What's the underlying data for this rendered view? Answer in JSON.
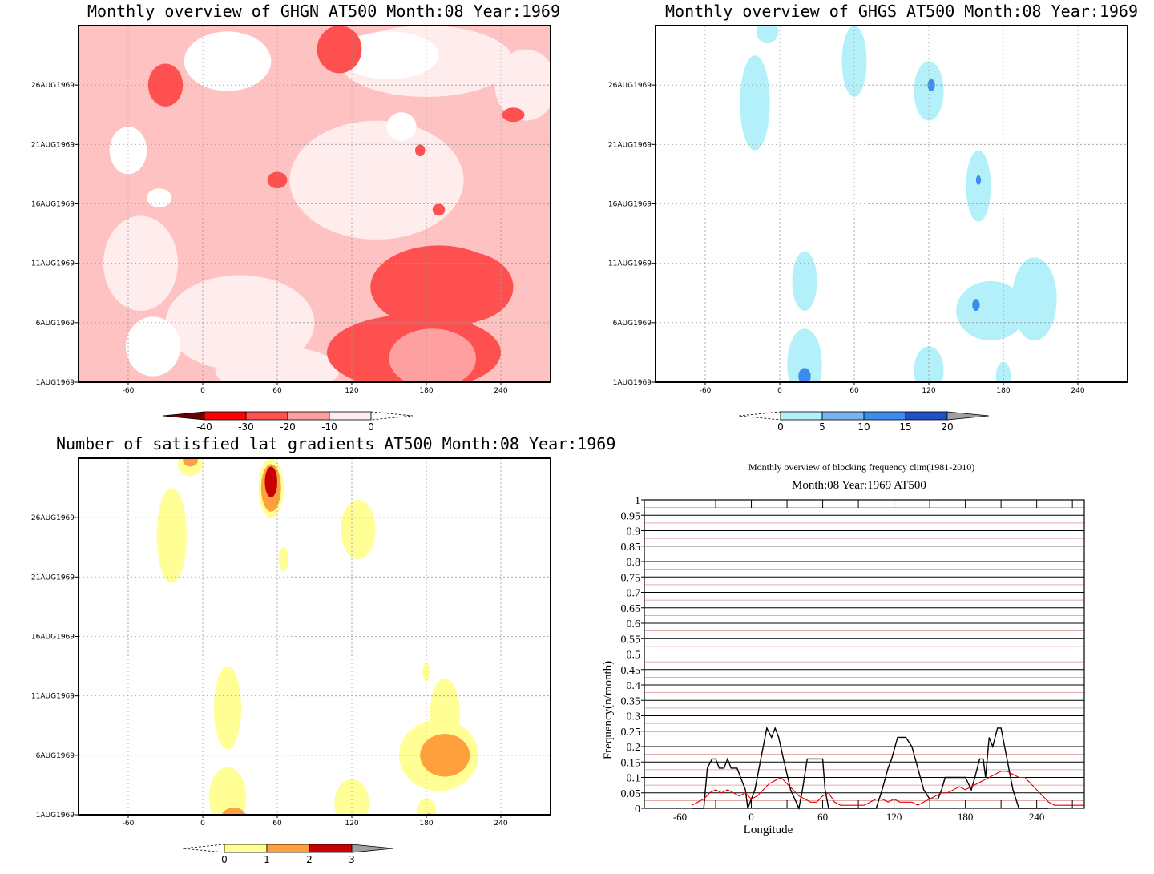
{
  "panels": {
    "ghgn": {
      "title": "Monthly overview of GHGN AT500 Month:08 Year:1969",
      "colorbar": {
        "ticks": [
          "-40",
          "-30",
          "-20",
          "-10",
          "0"
        ],
        "colors": [
          "#6b0000",
          "#ff0000",
          "#ff5050",
          "#ffa0a0",
          "#ffecec"
        ]
      },
      "blobs": [
        {
          "lon": 170,
          "day": 3.5,
          "rlon": 70,
          "rday": 3.2,
          "level": 2
        },
        {
          "lon": 185,
          "day": 3,
          "rlon": 35,
          "rday": 2.5,
          "level": 1
        },
        {
          "lon": 190,
          "day": 9,
          "rlon": 55,
          "rday": 3.5,
          "level": 2
        },
        {
          "lon": 210,
          "day": 9,
          "rlon": 40,
          "rday": 3,
          "level": 2
        },
        {
          "lon": -30,
          "day": 26,
          "rlon": 14,
          "rday": 1.8,
          "level": 2
        },
        {
          "lon": 110,
          "day": 29,
          "rlon": 18,
          "rday": 2,
          "level": 2
        },
        {
          "lon": 60,
          "day": 18,
          "rlon": 8,
          "rday": 0.7,
          "level": 2
        },
        {
          "lon": 250,
          "day": 23.5,
          "rlon": 9,
          "rday": 0.6,
          "level": 2
        },
        {
          "lon": 190,
          "day": 15.5,
          "rlon": 5,
          "rday": 0.5,
          "level": 2
        },
        {
          "lon": 175,
          "day": 20.5,
          "rlon": 4,
          "rday": 0.5,
          "level": 2
        }
      ],
      "whites": [
        {
          "lon": -40,
          "day": 4,
          "rlon": 22,
          "rday": 2.5
        },
        {
          "lon": -60,
          "day": 20.5,
          "rlon": 15,
          "rday": 2
        },
        {
          "lon": 20,
          "day": 28,
          "rlon": 35,
          "rday": 2.5
        },
        {
          "lon": 150,
          "day": 28.5,
          "rlon": 40,
          "rday": 2
        },
        {
          "lon": 160,
          "day": 22.5,
          "rlon": 12,
          "rday": 1.2
        },
        {
          "lon": -35,
          "day": 16.5,
          "rlon": 10,
          "rday": 0.8
        }
      ],
      "pale": [
        {
          "lon": 140,
          "day": 18,
          "rlon": 70,
          "rday": 5
        },
        {
          "lon": 30,
          "day": 6,
          "rlon": 60,
          "rday": 4
        },
        {
          "lon": -50,
          "day": 11,
          "rlon": 30,
          "rday": 4
        },
        {
          "lon": 180,
          "day": 28,
          "rlon": 70,
          "rday": 3
        },
        {
          "lon": 60,
          "day": 2,
          "rlon": 50,
          "rday": 2
        },
        {
          "lon": 260,
          "day": 26,
          "rlon": 25,
          "rday": 3
        }
      ]
    },
    "ghgs": {
      "title": "Monthly overview of GHGS AT500 Month:08 Year:1969",
      "colorbar": {
        "ticks": [
          "0",
          "5",
          "10",
          "15",
          "20"
        ],
        "colors": [
          "#b4f0fa",
          "#78b4f0",
          "#3c8cf0",
          "#1e50c8",
          "#a0a0a0"
        ]
      },
      "blobs": [
        {
          "lon": -20,
          "day": 24.5,
          "rlon": 12,
          "rday": 4,
          "level": 1
        },
        {
          "lon": 60,
          "day": 28,
          "rlon": 10,
          "rday": 3,
          "level": 1
        },
        {
          "lon": 120,
          "day": 25.5,
          "rlon": 12,
          "rday": 2.5,
          "level": 1
        },
        {
          "lon": 160,
          "day": 17.5,
          "rlon": 10,
          "rday": 3,
          "level": 1
        },
        {
          "lon": 20,
          "day": 9.5,
          "rlon": 10,
          "rday": 2.5,
          "level": 1
        },
        {
          "lon": 170,
          "day": 7,
          "rlon": 28,
          "rday": 2.5,
          "level": 1
        },
        {
          "lon": 205,
          "day": 8,
          "rlon": 18,
          "rday": 3.5,
          "level": 1
        },
        {
          "lon": 20,
          "day": 2.5,
          "rlon": 14,
          "rday": 3,
          "level": 1
        },
        {
          "lon": 120,
          "day": 2,
          "rlon": 12,
          "rday": 2,
          "level": 1
        },
        {
          "lon": 180,
          "day": 1.5,
          "rlon": 6,
          "rday": 1.2,
          "level": 1
        },
        {
          "lon": -10,
          "day": 30.5,
          "rlon": 9,
          "rday": 1,
          "level": 1
        },
        {
          "lon": 122,
          "day": 26,
          "rlon": 3,
          "rday": 0.5,
          "level": 2
        },
        {
          "lon": 160,
          "day": 18,
          "rlon": 2,
          "rday": 0.4,
          "level": 2
        },
        {
          "lon": 158,
          "day": 7.5,
          "rlon": 3,
          "rday": 0.5,
          "level": 2
        },
        {
          "lon": 20,
          "day": 1.5,
          "rlon": 5,
          "rday": 0.7,
          "level": 2
        }
      ]
    },
    "lat": {
      "title": "Number of satisfied lat gradients AT500 Month:08 Year:1969",
      "colorbar": {
        "ticks": [
          "0",
          "1",
          "2",
          "3"
        ],
        "colors": [
          "#ffff96",
          "#ffa03c",
          "#c80000",
          "#a0a0a0"
        ]
      },
      "blobs": [
        {
          "lon": -25,
          "day": 24.5,
          "rlon": 12,
          "rday": 4,
          "level": 1
        },
        {
          "lon": 55,
          "day": 28.5,
          "rlon": 10,
          "rday": 2.5,
          "level": 1
        },
        {
          "lon": -10,
          "day": 30.5,
          "rlon": 10,
          "rday": 1,
          "level": 1
        },
        {
          "lon": 125,
          "day": 25,
          "rlon": 14,
          "rday": 2.5,
          "level": 1
        },
        {
          "lon": 65,
          "day": 22.5,
          "rlon": 4,
          "rday": 1,
          "level": 1
        },
        {
          "lon": 20,
          "day": 10,
          "rlon": 11,
          "rday": 3.5,
          "level": 1
        },
        {
          "lon": 190,
          "day": 6,
          "rlon": 32,
          "rday": 3,
          "level": 1
        },
        {
          "lon": 195,
          "day": 9.5,
          "rlon": 12,
          "rday": 3,
          "level": 1
        },
        {
          "lon": 20,
          "day": 2.5,
          "rlon": 15,
          "rday": 2.5,
          "level": 1
        },
        {
          "lon": 120,
          "day": 2,
          "rlon": 14,
          "rday": 2,
          "level": 1
        },
        {
          "lon": 180,
          "day": 1.2,
          "rlon": 8,
          "rday": 1.2,
          "level": 1
        },
        {
          "lon": 180,
          "day": 13,
          "rlon": 3,
          "rday": 0.8,
          "level": 1
        },
        {
          "lon": 55,
          "day": 28.5,
          "rlon": 8,
          "rday": 2,
          "level": 2
        },
        {
          "lon": -10,
          "day": 30.8,
          "rlon": 6,
          "rday": 0.5,
          "level": 2
        },
        {
          "lon": 195,
          "day": 6,
          "rlon": 20,
          "rday": 1.8,
          "level": 2
        },
        {
          "lon": 25,
          "day": 0.8,
          "rlon": 10,
          "rday": 0.8,
          "level": 2
        },
        {
          "lon": 55,
          "day": 29,
          "rlon": 5,
          "rday": 1.3,
          "level": 3
        },
        {
          "lon": 182,
          "day": 0.5,
          "rlon": 3,
          "rday": 0.6,
          "level": 3
        }
      ]
    }
  },
  "map_axes": {
    "xticks": [
      "-60",
      "0",
      "60",
      "120",
      "180",
      "240"
    ],
    "yticks": [
      "1AUG1969",
      "6AUG1969",
      "11AUG1969",
      "16AUG1969",
      "21AUG1969",
      "26AUG1969"
    ]
  },
  "chart_data": {
    "type": "line",
    "title": "Monthly overview of blocking frequency clim(1981-2010)",
    "subtitle": "Month:08 Year:1969  AT500",
    "xlabel": "Longitude",
    "ylabel": "Frequency(n/month)",
    "xlim": [
      -90,
      280
    ],
    "ylim": [
      0,
      1
    ],
    "xticks": [
      "-60",
      "0",
      "60",
      "120",
      "180",
      "240"
    ],
    "yticks": [
      "0",
      "0.05",
      "0.1",
      "0.15",
      "0.2",
      "0.25",
      "0.3",
      "0.35",
      "0.4",
      "0.45",
      "0.5",
      "0.55",
      "0.6",
      "0.65",
      "0.7",
      "0.75",
      "0.8",
      "0.85",
      "0.9",
      "0.95",
      "1"
    ],
    "grid": true,
    "series": [
      {
        "color": "#000000",
        "x": [
          -50,
          -40,
          -37,
          -33,
          -30,
          -27,
          -23,
          -20,
          -17,
          -12,
          -5,
          -3,
          0,
          3,
          8,
          13,
          17,
          20,
          23,
          27,
          33,
          40,
          43,
          47,
          50,
          55,
          60,
          62,
          65,
          70,
          75,
          80,
          85,
          90,
          95,
          100,
          105,
          110,
          115,
          118,
          123,
          127,
          130,
          135,
          140,
          145,
          150,
          157,
          160,
          163,
          167,
          170,
          175,
          180,
          185,
          188,
          192,
          195,
          197,
          200,
          203,
          207,
          210,
          215,
          220,
          225,
          230,
          235,
          240,
          250
        ],
        "y": [
          0,
          0,
          0.13,
          0.16,
          0.16,
          0.13,
          0.13,
          0.16,
          0.13,
          0.13,
          0.06,
          0,
          0.03,
          0.06,
          0.16,
          0.26,
          0.23,
          0.26,
          0.23,
          0.16,
          0.06,
          0,
          0.06,
          0.16,
          0.16,
          0.16,
          0.16,
          0.06,
          0,
          0,
          0,
          0,
          0,
          0,
          0,
          0,
          0,
          0.06,
          0.13,
          0.16,
          0.23,
          0.23,
          0.23,
          0.2,
          0.13,
          0.06,
          0.03,
          0.03,
          0.06,
          0.1,
          0.1,
          0.1,
          0.1,
          0.1,
          0.06,
          0.1,
          0.16,
          0.16,
          0.1,
          0.23,
          0.2,
          0.26,
          0.26,
          0.16,
          0.06,
          0,
          0,
          0,
          0,
          0
        ]
      },
      {
        "color": "#e00000",
        "x": [
          -50,
          -45,
          -40,
          -35,
          -30,
          -25,
          -20,
          -15,
          -10,
          -5,
          0,
          5,
          10,
          15,
          20,
          25,
          30,
          35,
          40,
          45,
          50,
          55,
          60,
          65,
          70,
          75,
          80,
          85,
          90,
          95,
          100,
          105,
          110,
          115,
          120,
          125,
          130,
          135,
          140,
          145,
          150,
          155,
          160,
          165,
          170,
          175,
          180,
          185,
          190,
          195,
          200,
          205,
          210,
          215,
          220,
          225,
          230,
          235,
          240,
          245,
          250,
          255,
          260,
          270,
          280
        ],
        "y": [
          0.01,
          0.02,
          0.03,
          0.05,
          0.06,
          0.05,
          0.06,
          0.05,
          0.04,
          0.05,
          0.03,
          0.04,
          0.06,
          0.08,
          0.09,
          0.1,
          0.08,
          0.06,
          0.04,
          0.03,
          0.02,
          0.02,
          0.04,
          0.05,
          0.02,
          0.01,
          0.01,
          0.01,
          0.01,
          0.01,
          0.02,
          0.03,
          0.03,
          0.02,
          0.03,
          0.02,
          0.02,
          0.02,
          0.01,
          0.02,
          0.03,
          0.04,
          0.05,
          0.05,
          0.06,
          0.07,
          0.06,
          0.07,
          0.08,
          0.09,
          0.1,
          0.11,
          0.12,
          0.12,
          0.11,
          0.1,
          0.1,
          0.08,
          0.06,
          0.04,
          0.02,
          0.01,
          0.01,
          0.01,
          0.01
        ]
      }
    ],
    "hlines": [
      0.03,
      0.12
    ]
  }
}
